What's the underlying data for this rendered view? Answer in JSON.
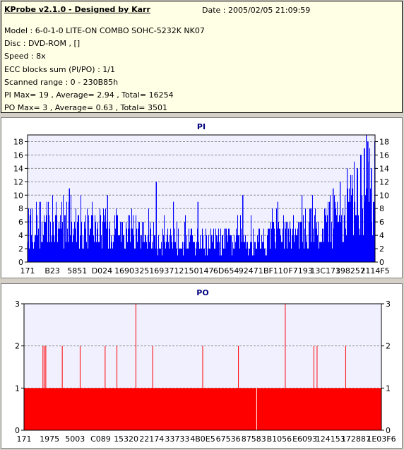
{
  "info": {
    "app_title": "KProbe v2.1.0 - Designed by Karr",
    "date_line": "Date : 2005/02/05 21:09:59",
    "lines": [
      "Model : 6-0-1-0 LITE-ON COMBO SOHC-5232K NK07",
      "Disc : DVD-ROM ,  []",
      "Speed : 8x",
      "ECC blocks sum (PI/PO) : 1/1",
      "Scanned range : 0 - 230B85h",
      "PI Max= 19 , Average= 2.94 , Total= 16254",
      "PO Max= 3 , Average= 0.63 , Total= 3501"
    ]
  },
  "chart_data": [
    {
      "type": "bar",
      "title": "PI",
      "ylim": [
        0,
        19
      ],
      "y_ticks": [
        0,
        2,
        4,
        6,
        8,
        10,
        12,
        14,
        16,
        18
      ],
      "x_tick_labels": [
        "171",
        "B23",
        "5851",
        "D024",
        "16903",
        "25169",
        "37121",
        "50147",
        "6D654",
        "92471",
        "BF110",
        "F7193",
        "13C173",
        "198257",
        "2114F5"
      ],
      "grid": true,
      "series_color": "#0000ff",
      "summary": {
        "max": 19,
        "average": 2.94,
        "total": 16254
      },
      "profile_points": [
        [
          0,
          6
        ],
        [
          0.1,
          5.5
        ],
        [
          0.25,
          4.2
        ],
        [
          0.4,
          3.5
        ],
        [
          0.55,
          3.1
        ],
        [
          0.65,
          3.3
        ],
        [
          0.75,
          4.0
        ],
        [
          0.85,
          5.2
        ],
        [
          0.92,
          7.5
        ],
        [
          0.97,
          10.5
        ],
        [
          1,
          11
        ]
      ],
      "spikes": [
        [
          0.12,
          11
        ],
        [
          0.23,
          10
        ],
        [
          0.37,
          12
        ],
        [
          0.42,
          9
        ],
        [
          0.49,
          9
        ],
        [
          0.62,
          10
        ],
        [
          0.72,
          9
        ],
        [
          0.79,
          10
        ],
        [
          0.82,
          10
        ],
        [
          0.88,
          11
        ],
        [
          0.9,
          12
        ],
        [
          0.92,
          14
        ],
        [
          0.93,
          13
        ],
        [
          0.94,
          15
        ],
        [
          0.95,
          14
        ],
        [
          0.96,
          16
        ],
        [
          0.97,
          17
        ],
        [
          0.975,
          19
        ],
        [
          0.98,
          18
        ],
        [
          0.99,
          14
        ]
      ]
    },
    {
      "type": "bar",
      "title": "PO",
      "ylim": [
        0,
        3
      ],
      "y_ticks": [
        0,
        1,
        2,
        3
      ],
      "x_tick_labels": [
        "171",
        "1975",
        "5003",
        "C089",
        "15320",
        "22174",
        "33733",
        "4B0E5",
        "67536",
        "87583",
        "B1056",
        "E6093",
        "124153",
        "172887",
        "1E03F6"
      ],
      "grid": true,
      "series_color": "#ff0000",
      "summary": {
        "max": 3,
        "average": 0.63,
        "total": 3501
      },
      "base_level": 1,
      "base_gaps": [
        0.651
      ],
      "spikes": [
        [
          0.053,
          2
        ],
        [
          0.057,
          2
        ],
        [
          0.061,
          2
        ],
        [
          0.107,
          2
        ],
        [
          0.157,
          2
        ],
        [
          0.227,
          2
        ],
        [
          0.26,
          2
        ],
        [
          0.313,
          3
        ],
        [
          0.36,
          2
        ],
        [
          0.5,
          2
        ],
        [
          0.6,
          2
        ],
        [
          0.731,
          3
        ],
        [
          0.811,
          2
        ],
        [
          0.82,
          2
        ],
        [
          0.9,
          2
        ]
      ]
    }
  ]
}
